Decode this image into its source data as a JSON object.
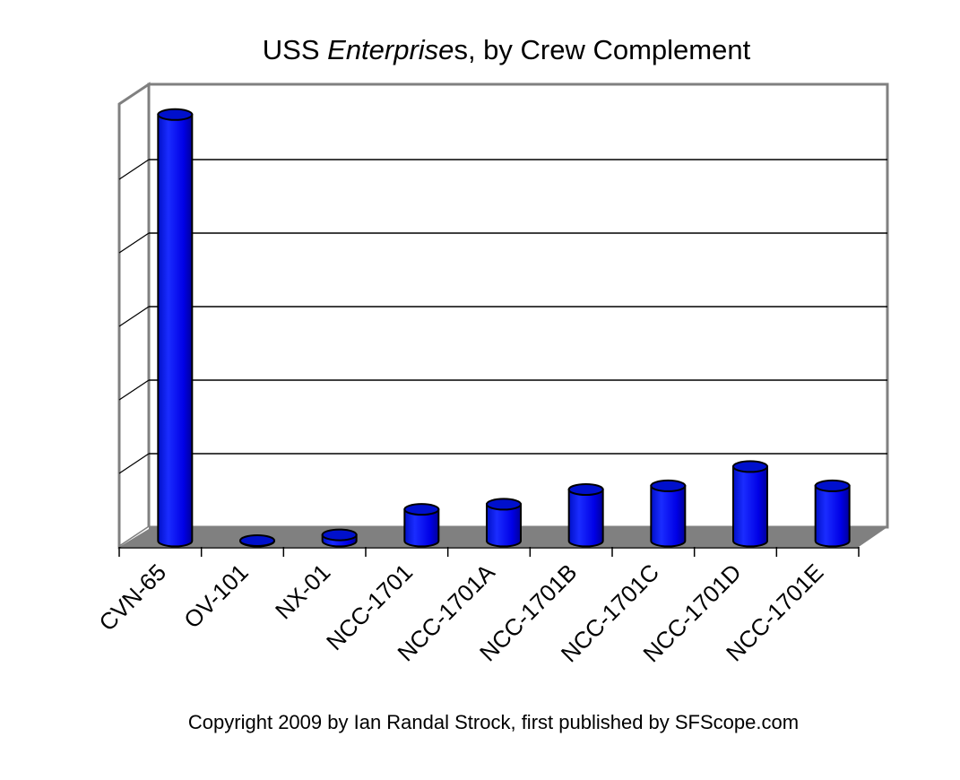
{
  "chart_data": {
    "type": "bar",
    "style": "3d-cylinder",
    "title_parts": [
      "USS ",
      "Enterprise",
      "s, by Crew Complement"
    ],
    "title": "USS Enterprises, by Crew Complement",
    "xlabel": "",
    "ylabel": "",
    "y_tick_labels_shown": false,
    "ylim": [
      0,
      6000
    ],
    "gridline_step": 1000,
    "grid": true,
    "legend": "none",
    "bar_color": "#0000ee",
    "floor_color": "#808080",
    "categories": [
      "CVN-65",
      "OV-101",
      "NX-01",
      "NCC-1701",
      "NCC-1701A",
      "NCC-1701B",
      "NCC-1701C",
      "NCC-1701D",
      "NCC-1701E"
    ],
    "values": [
      5800,
      5,
      83,
      430,
      500,
      700,
      750,
      1012,
      750
    ],
    "values_note": "estimated from gridlines; no value labels shown"
  },
  "footer": {
    "copyright": "Copyright 2009 by Ian Randal Strock, first published by SFScope.com"
  }
}
